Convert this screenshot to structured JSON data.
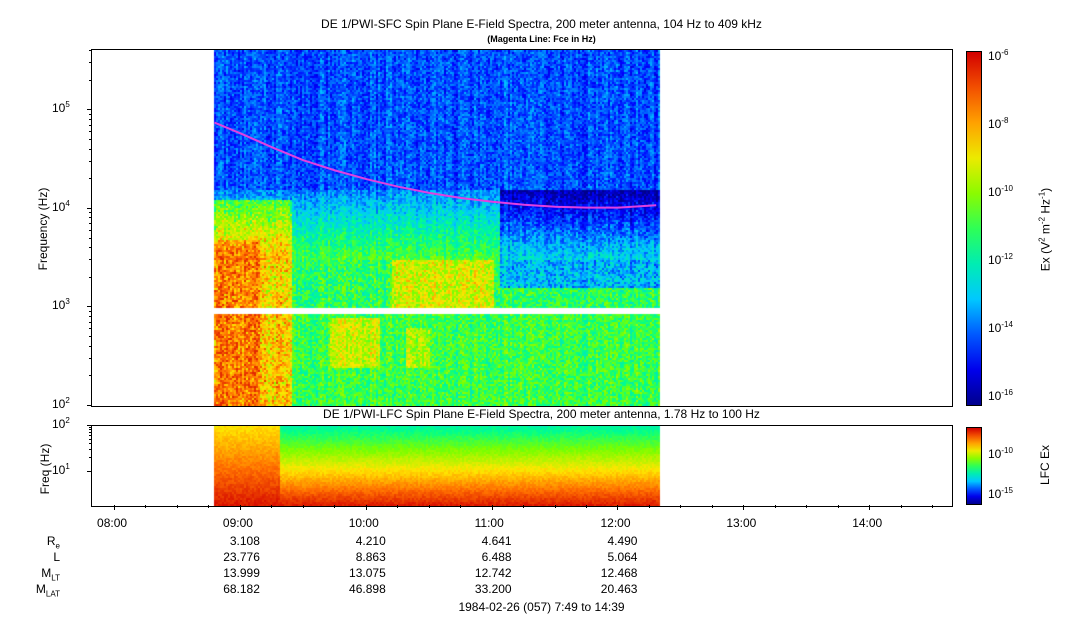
{
  "titles": {
    "sfc_title": "DE 1/PWI-SFC  Spin Plane E-Field Spectra, 200 meter antenna, 104 Hz to 409 kHz",
    "sfc_subtitle": "(Magenta Line: Fce in Hz)",
    "lfc_title": "DE 1/PWI-LFC  Spin Plane E-Field Spectra, 200 meter antenna, 1.78 Hz to 100 Hz"
  },
  "chart_data": [
    {
      "type": "heatmap",
      "name": "SFC spectrogram",
      "ylabel": "Frequency (Hz)",
      "yscale": "log",
      "ylim": [
        100,
        409000
      ],
      "yticks": [
        {
          "value": 100,
          "base": "10",
          "exp": "2"
        },
        {
          "value": 1000,
          "base": "10",
          "exp": "3"
        },
        {
          "value": 10000,
          "base": "10",
          "exp": "4"
        },
        {
          "value": 100000,
          "base": "10",
          "exp": "5"
        }
      ],
      "data_coverage_hours": [
        8.79,
        12.32
      ],
      "fce_line": {
        "color": "#e040e0",
        "hours": [
          8.79,
          9.0,
          9.25,
          9.5,
          9.75,
          10.0,
          10.25,
          10.5,
          10.75,
          11.0,
          11.25,
          11.5,
          11.75,
          12.0,
          12.3
        ],
        "freq_hz": [
          75000,
          58000,
          42000,
          31000,
          24500,
          20000,
          16800,
          14500,
          12900,
          11800,
          11000,
          10500,
          10300,
          10300,
          10900
        ]
      },
      "colorbar": {
        "label_base": "Ex (V",
        "label_sup1": "2",
        "label_mid": " m",
        "label_sup2": "-2",
        "label_mid2": " Hz",
        "label_sup3": "-1",
        "label_end": ")",
        "scale": "log",
        "range": [
          1e-16,
          1e-06
        ],
        "ticks": [
          {
            "base": "10",
            "exp": "-6"
          },
          {
            "base": "10",
            "exp": "-8"
          },
          {
            "base": "10",
            "exp": "-10"
          },
          {
            "base": "10",
            "exp": "-12"
          },
          {
            "base": "10",
            "exp": "-14"
          },
          {
            "base": "10",
            "exp": "-16"
          }
        ]
      }
    },
    {
      "type": "heatmap",
      "name": "LFC spectrogram",
      "ylabel": "Freq (Hz)",
      "yscale": "log",
      "ylim": [
        1.78,
        100
      ],
      "yticks": [
        {
          "value": 10,
          "base": "10",
          "exp": "1"
        },
        {
          "value": 100,
          "base": "10",
          "exp": "2"
        }
      ],
      "data_coverage_hours": [
        8.79,
        12.32
      ],
      "colorbar": {
        "label": "LFC Ex",
        "ticks": [
          {
            "base": "10",
            "exp": "-10"
          },
          {
            "base": "10",
            "exp": "-15"
          }
        ]
      }
    }
  ],
  "time_axis": {
    "range_hours": [
      7.817,
      14.65
    ],
    "ticks": [
      {
        "hour": 8,
        "label": "08:00"
      },
      {
        "hour": 9,
        "label": "09:00"
      },
      {
        "hour": 10,
        "label": "10:00"
      },
      {
        "hour": 11,
        "label": "11:00"
      },
      {
        "hour": 12,
        "label": "12:00"
      },
      {
        "hour": 13,
        "label": "13:00"
      },
      {
        "hour": 14,
        "label": "14:00"
      }
    ]
  },
  "ephemeris": {
    "rows": [
      {
        "label": "R",
        "sub": "e",
        "values": [
          "3.108",
          "4.210",
          "4.641",
          "4.490"
        ]
      },
      {
        "label": "L",
        "sub": "",
        "values": [
          "23.776",
          "8.863",
          "6.488",
          "5.064"
        ]
      },
      {
        "label": "M",
        "sub": "LT",
        "values": [
          "13.999",
          "13.075",
          "12.742",
          "12.468"
        ]
      },
      {
        "label": "M",
        "sub": "LAT",
        "values": [
          "68.182",
          "46.898",
          "33.200",
          "20.463"
        ]
      }
    ]
  },
  "footer": "1984-02-26 (057) 7:49 to 14:39"
}
